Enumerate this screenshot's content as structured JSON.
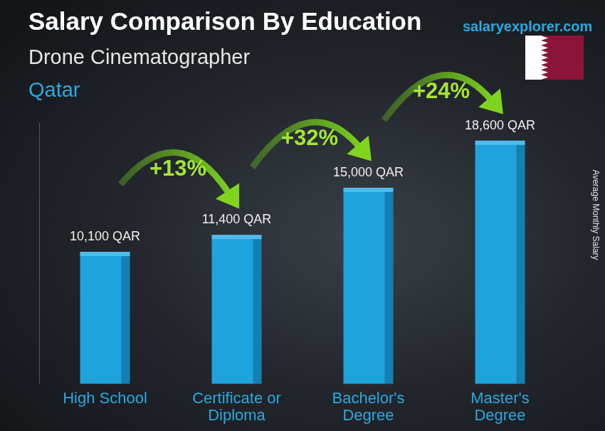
{
  "chart_data": {
    "type": "bar",
    "title": "Salary Comparison By Education",
    "subtitle": [
      "Drone Cinematographer",
      "Qatar"
    ],
    "source": "salaryexplorer.com",
    "y_label": "Average Monthly Salary",
    "categories": [
      "High School",
      "Certificate or Diploma",
      "Bachelor's Degree",
      "Master's Degree"
    ],
    "values": [
      10100,
      11400,
      15000,
      18600
    ],
    "value_labels": [
      "10,100 QAR",
      "11,400 QAR",
      "15,000 QAR",
      "18,600 QAR"
    ],
    "annotations": [
      "+13%",
      "+32%",
      "+24%"
    ],
    "color": "#1fa3dc",
    "ylim": [
      0,
      20000
    ],
    "grid": false,
    "data_labels": true,
    "tick_labels": "x"
  }
}
